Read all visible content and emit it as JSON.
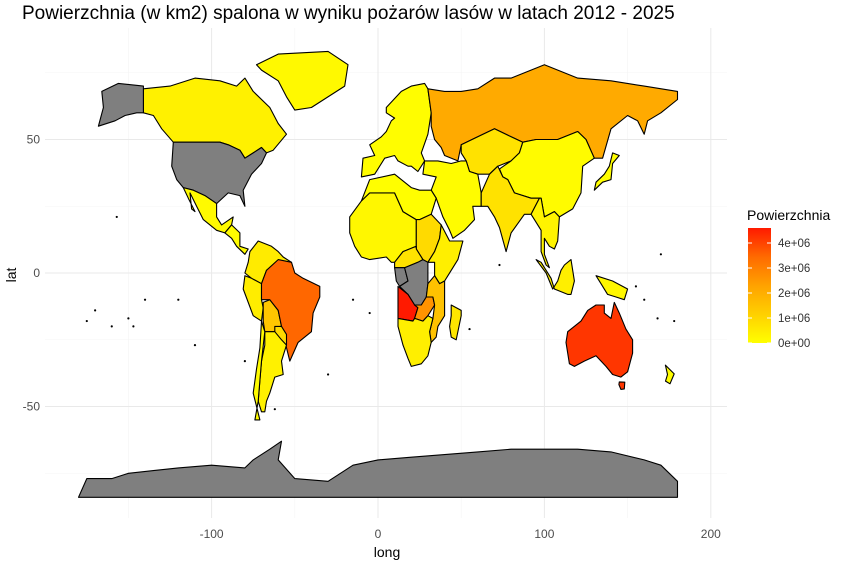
{
  "title": "Powierzchnia (w km2) spalona w wyniku pożarów lasów w latach 2012 - 2025",
  "chart_data": {
    "type": "choropleth",
    "title": "Powierzchnia (w km2) spalona w wyniku pożarów lasów w latach 2012 - 2025",
    "xlabel": "long",
    "ylabel": "lat",
    "x_ticks": [
      -100,
      0,
      100,
      200
    ],
    "y_ticks": [
      -50,
      0,
      50
    ],
    "xlim": [
      -180,
      200
    ],
    "ylim": [
      -90,
      86
    ],
    "grid": true,
    "legend": {
      "title": "Powierzchnia",
      "placement": "right",
      "labels": [
        "4e+06",
        "3e+06",
        "2e+06",
        "1e+06",
        "0e+00"
      ],
      "values": [
        4000000,
        3000000,
        2000000,
        1000000,
        0
      ],
      "range": [
        0,
        4600000
      ],
      "colors": [
        "#ffff00",
        "#ffd000",
        "#ffa200",
        "#ff6a00",
        "#ff1a00"
      ],
      "na_color": "#7f7f7f"
    },
    "regions": [
      {
        "id": "greenland",
        "value": 150000
      },
      {
        "id": "canada",
        "value": 350000
      },
      {
        "id": "alaska",
        "value": null
      },
      {
        "id": "usa",
        "value": null
      },
      {
        "id": "mexico",
        "value": 120000
      },
      {
        "id": "central-america",
        "value": 80000
      },
      {
        "id": "colombia-venezuela",
        "value": 500000
      },
      {
        "id": "peru",
        "value": 450000
      },
      {
        "id": "bolivia",
        "value": 1400000
      },
      {
        "id": "brazil",
        "value": 3500000
      },
      {
        "id": "paraguay",
        "value": 900000
      },
      {
        "id": "argentina",
        "value": 350000
      },
      {
        "id": "chile",
        "value": 100000
      },
      {
        "id": "europe",
        "value": 60000
      },
      {
        "id": "russia",
        "value": 2100000
      },
      {
        "id": "kazakhstan",
        "value": 700000
      },
      {
        "id": "middle-east",
        "value": 80000
      },
      {
        "id": "china",
        "value": 100000
      },
      {
        "id": "india",
        "value": 700000
      },
      {
        "id": "southeast-asia",
        "value": 300000
      },
      {
        "id": "sahel-west-africa",
        "value": 200000
      },
      {
        "id": "north-africa",
        "value": 20000
      },
      {
        "id": "sudan",
        "value": 900000
      },
      {
        "id": "east-africa",
        "value": 400000
      },
      {
        "id": "cameroon-car",
        "value": 700000
      },
      {
        "id": "congo-rep",
        "value": null
      },
      {
        "id": "drc",
        "value": null
      },
      {
        "id": "angola",
        "value": 4600000
      },
      {
        "id": "zambia",
        "value": 2600000
      },
      {
        "id": "tanzania-mozambique",
        "value": 1500000
      },
      {
        "id": "southern-africa",
        "value": 400000
      },
      {
        "id": "madagascar",
        "value": 600000
      },
      {
        "id": "indonesia",
        "value": 400000
      },
      {
        "id": "papua",
        "value": 200000
      },
      {
        "id": "australia",
        "value": 4200000
      },
      {
        "id": "tasmania",
        "value": 4200000
      },
      {
        "id": "new-zealand",
        "value": 50000
      },
      {
        "id": "japan",
        "value": 30000
      },
      {
        "id": "antarctica",
        "value": null
      }
    ]
  }
}
